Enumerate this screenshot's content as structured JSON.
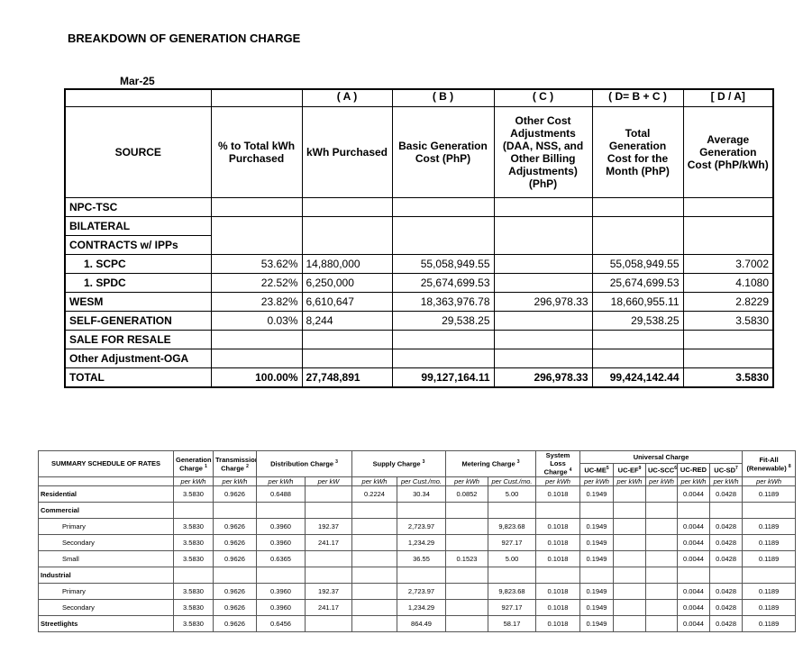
{
  "title": "BREAKDOWN OF GENERATION CHARGE",
  "month": "Mar-25",
  "generation_table": {
    "col_letters": [
      "",
      "",
      "( A )",
      "( B )",
      "( C )",
      "( D= B + C )",
      "[ D / A]"
    ],
    "headers": [
      "SOURCE",
      "% to Total kWh Purchased",
      "kWh Purchased",
      "Basic Generation Cost (PhP)",
      "Other Cost Adjustments (DAA, NSS, and Other Billing Adjustments) (PhP)",
      "Total Generation Cost for the Month (PhP)",
      "Average Generation Cost (PhP/kWh)"
    ],
    "rows": [
      {
        "source": "NPC-TSC",
        "cells": [
          "",
          "",
          "",
          "",
          "",
          ""
        ]
      },
      {
        "source": "BILATERAL",
        "cells": [
          "",
          "",
          "",
          "",
          "",
          ""
        ]
      },
      {
        "source": "CONTRACTS w/ IPPs",
        "cells": [
          "",
          "",
          "",
          "",
          "",
          ""
        ]
      },
      {
        "source": "1.  SCPC",
        "indent": true,
        "cells": [
          "53.62%",
          "14,880,000",
          "55,058,949.55",
          "",
          "55,058,949.55",
          "3.7002"
        ]
      },
      {
        "source": "1.  SPDC",
        "indent": true,
        "cells": [
          "22.52%",
          "6,250,000",
          "25,674,699.53",
          "",
          "25,674,699.53",
          "4.1080"
        ]
      },
      {
        "source": "WESM",
        "cells": [
          "23.82%",
          "6,610,647",
          "18,363,976.78",
          "296,978.33",
          "18,660,955.11",
          "2.8229"
        ]
      },
      {
        "source": "SELF-GENERATION",
        "cells": [
          "0.03%",
          "8,244",
          "29,538.25",
          "",
          "29,538.25",
          "3.5830"
        ]
      },
      {
        "source": "SALE FOR RESALE",
        "cells": [
          "",
          "",
          "",
          "",
          "",
          ""
        ]
      },
      {
        "source": "Other Adjustment-OGA",
        "cells": [
          "",
          "",
          "",
          "",
          "",
          ""
        ]
      },
      {
        "source": "TOTAL",
        "total": true,
        "cells": [
          "100.00%",
          "27,748,891",
          "99,127,164.11",
          "296,978.33",
          "99,424,142.44",
          "3.5830"
        ]
      }
    ]
  },
  "rates_table": {
    "title": "SUMMARY SCHEDULE OF RATES",
    "groups": {
      "generation": "Generation Charge",
      "transmission": "Transmission Charge",
      "distribution": "Distribution Charge",
      "supply": "Supply Charge",
      "metering": "Metering Charge",
      "system_loss": "System Loss Charge",
      "universal": "Universal Charge",
      "fit_all": "Fit-All (Renewable)"
    },
    "footnotes": {
      "generation": "1",
      "transmission": "2",
      "distribution": "3",
      "supply": "3",
      "metering": "3",
      "system_loss": "4",
      "fit_all": "8"
    },
    "uc_cols": [
      {
        "label": "UC-ME",
        "sup": "5"
      },
      {
        "label": "UC-EF",
        "sup": "9"
      },
      {
        "label": "UC-SCC",
        "sup": "6"
      },
      {
        "label": "UC-RED",
        "sup": ""
      },
      {
        "label": "UC-SD",
        "sup": "7"
      }
    ],
    "units": [
      "per kWh",
      "per kWh",
      "per kWh",
      "per kW",
      "per kWh",
      "per Cust./mo.",
      "per kWh",
      "per Cust./mo.",
      "per kWh",
      "per kWh",
      "per kWh",
      "per kWh",
      "per kWh",
      "per kWh",
      "per kWh"
    ],
    "rows": [
      {
        "label": "Residential",
        "bold": true,
        "cells": [
          "3.5830",
          "0.9626",
          "0.6488",
          "",
          "0.2224",
          "30.34",
          "0.0852",
          "5.00",
          "0.1018",
          "0.1949",
          "",
          "",
          "0.0044",
          "0.0428",
          "0.1189"
        ]
      },
      {
        "label": "Commercial",
        "bold": true,
        "cells": [
          "",
          "",
          "",
          "",
          "",
          "",
          "",
          "",
          "",
          "",
          "",
          "",
          "",
          "",
          ""
        ]
      },
      {
        "label": "Primary",
        "cells": [
          "3.5830",
          "0.9626",
          "0.3960",
          "192.37",
          "",
          "2,723.97",
          "",
          "9,823.68",
          "0.1018",
          "0.1949",
          "",
          "",
          "0.0044",
          "0.0428",
          "0.1189"
        ]
      },
      {
        "label": "Secondary",
        "cells": [
          "3.5830",
          "0.9626",
          "0.3960",
          "241.17",
          "",
          "1,234.29",
          "",
          "927.17",
          "0.1018",
          "0.1949",
          "",
          "",
          "0.0044",
          "0.0428",
          "0.1189"
        ]
      },
      {
        "label": "Small",
        "cells": [
          "3.5830",
          "0.9626",
          "0.6365",
          "",
          "",
          "36.55",
          "0.1523",
          "5.00",
          "0.1018",
          "0.1949",
          "",
          "",
          "0.0044",
          "0.0428",
          "0.1189"
        ]
      },
      {
        "label": "Industrial",
        "bold": true,
        "cells": [
          "",
          "",
          "",
          "",
          "",
          "",
          "",
          "",
          "",
          "",
          "",
          "",
          "",
          "",
          ""
        ]
      },
      {
        "label": "Primary",
        "cells": [
          "3.5830",
          "0.9626",
          "0.3960",
          "192.37",
          "",
          "2,723.97",
          "",
          "9,823.68",
          "0.1018",
          "0.1949",
          "",
          "",
          "0.0044",
          "0.0428",
          "0.1189"
        ]
      },
      {
        "label": "Secondary",
        "cells": [
          "3.5830",
          "0.9626",
          "0.3960",
          "241.17",
          "",
          "1,234.29",
          "",
          "927.17",
          "0.1018",
          "0.1949",
          "",
          "",
          "0.0044",
          "0.0428",
          "0.1189"
        ]
      },
      {
        "label": "Streetlights",
        "bold": true,
        "cells": [
          "3.5830",
          "0.9626",
          "0.6456",
          "",
          "",
          "864.49",
          "",
          "58.17",
          "0.1018",
          "0.1949",
          "",
          "",
          "0.0044",
          "0.0428",
          "0.1189"
        ]
      }
    ]
  }
}
